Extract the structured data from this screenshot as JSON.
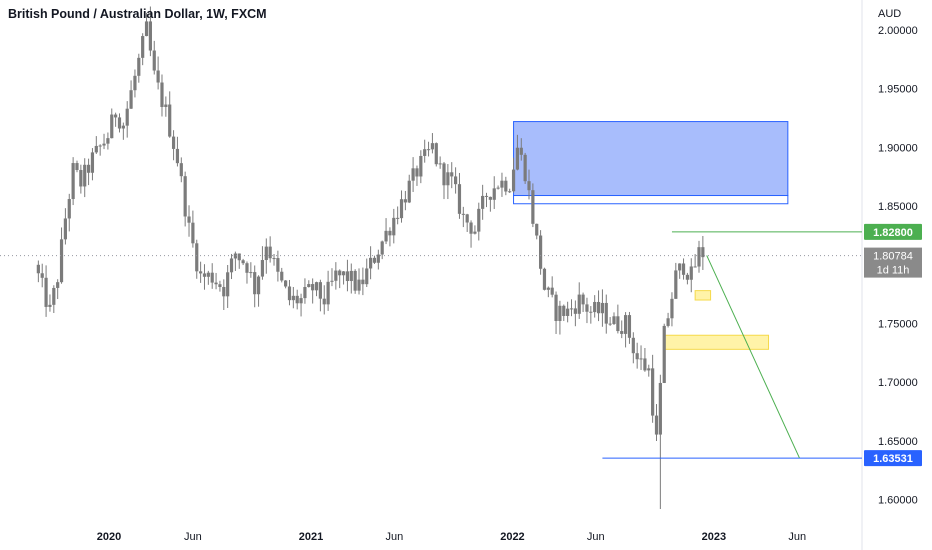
{
  "header": {
    "title": "British Pound / Australian Dollar, 1W, FXCM"
  },
  "price_axis": {
    "currency": "AUD",
    "ticks": [
      "2.00000",
      "1.95000",
      "1.90000",
      "1.85000",
      "1.80000",
      "1.75000",
      "1.70000",
      "1.65000",
      "1.60000"
    ]
  },
  "time_axis": {
    "ticks": [
      {
        "label": "2020",
        "bold": true
      },
      {
        "label": "Jun",
        "bold": false
      },
      {
        "label": "2021",
        "bold": true
      },
      {
        "label": "Jun",
        "bold": false
      },
      {
        "label": "2022",
        "bold": true
      },
      {
        "label": "Jun",
        "bold": false
      },
      {
        "label": "2023",
        "bold": true
      },
      {
        "label": "Jun",
        "bold": false
      }
    ]
  },
  "price_labels": {
    "green_level": "1.82800",
    "last_price": "1.80784",
    "countdown": "1d 11h",
    "blue_level": "1.63531"
  },
  "colors": {
    "candle": "#7b7b7b",
    "green_line": "#4caf50",
    "blue_line": "#2962ff",
    "blue_zone_fill": "#a8bdfc",
    "yellow_zone_fill": "#fff3a8",
    "yellow_zone_border": "#f5d94a",
    "last_price_tag": "#8a8a8a"
  },
  "chart_data": {
    "type": "candlestick",
    "symbol": "British Pound / Australian Dollar",
    "interval": "1W",
    "source": "FXCM",
    "y_axis_label": "AUD",
    "ylim": [
      1.59,
      2.02
    ],
    "x_range": [
      "2019-08",
      "2023-08"
    ],
    "series_path": [
      [
        "2019-08-26",
        1.8
      ],
      [
        "2019-09-09",
        1.78
      ],
      [
        "2019-09-23",
        1.76
      ],
      [
        "2019-10-07",
        1.79
      ],
      [
        "2019-10-21",
        1.84
      ],
      [
        "2019-11-04",
        1.88
      ],
      [
        "2019-11-18",
        1.87
      ],
      [
        "2019-12-09",
        1.89
      ],
      [
        "2020-01-06",
        1.91
      ],
      [
        "2020-01-20",
        1.93
      ],
      [
        "2020-02-03",
        1.92
      ],
      [
        "2020-02-24",
        1.96
      ],
      [
        "2020-03-16",
        2.0
      ],
      [
        "2020-03-30",
        1.96
      ],
      [
        "2020-04-20",
        1.93
      ],
      [
        "2020-05-11",
        1.89
      ],
      [
        "2020-06-01",
        1.83
      ],
      [
        "2020-06-22",
        1.79
      ],
      [
        "2020-07-13",
        1.79
      ],
      [
        "2020-08-03",
        1.78
      ],
      [
        "2020-08-24",
        1.81
      ],
      [
        "2020-09-14",
        1.8
      ],
      [
        "2020-09-28",
        1.78
      ],
      [
        "2020-10-19",
        1.82
      ],
      [
        "2020-11-09",
        1.79
      ],
      [
        "2020-11-30",
        1.77
      ],
      [
        "2020-12-21",
        1.77
      ],
      [
        "2021-01-11",
        1.78
      ],
      [
        "2021-02-01",
        1.77
      ],
      [
        "2021-02-22",
        1.79
      ],
      [
        "2021-03-15",
        1.79
      ],
      [
        "2021-04-05",
        1.78
      ],
      [
        "2021-04-26",
        1.8
      ],
      [
        "2021-05-17",
        1.82
      ],
      [
        "2021-06-07",
        1.84
      ],
      [
        "2021-06-28",
        1.86
      ],
      [
        "2021-07-19",
        1.88
      ],
      [
        "2021-08-02",
        1.89
      ],
      [
        "2021-08-16",
        1.9
      ],
      [
        "2021-08-30",
        1.88
      ],
      [
        "2021-09-20",
        1.87
      ],
      [
        "2021-10-11",
        1.84
      ],
      [
        "2021-11-01",
        1.83
      ],
      [
        "2021-11-22",
        1.86
      ],
      [
        "2021-12-13",
        1.87
      ],
      [
        "2022-01-03",
        1.87
      ],
      [
        "2022-01-17",
        1.9
      ],
      [
        "2022-01-31",
        1.88
      ],
      [
        "2022-02-14",
        1.84
      ],
      [
        "2022-03-07",
        1.78
      ],
      [
        "2022-03-28",
        1.76
      ],
      [
        "2022-04-18",
        1.76
      ],
      [
        "2022-05-09",
        1.77
      ],
      [
        "2022-05-30",
        1.76
      ],
      [
        "2022-06-20",
        1.76
      ],
      [
        "2022-07-11",
        1.75
      ],
      [
        "2022-08-01",
        1.75
      ],
      [
        "2022-08-22",
        1.72
      ],
      [
        "2022-09-12",
        1.71
      ],
      [
        "2022-09-26",
        1.65
      ],
      [
        "2022-10-10",
        1.74
      ],
      [
        "2022-10-31",
        1.79
      ],
      [
        "2022-11-14",
        1.8
      ],
      [
        "2022-11-28",
        1.79
      ],
      [
        "2022-12-12",
        1.81
      ]
    ],
    "annotations": [
      {
        "type": "rectangle",
        "color": "blue",
        "time_from": "2022-01-03",
        "time_to": "2023-05-15",
        "price_from": 1.859,
        "price_to": 1.922
      },
      {
        "type": "rectangle",
        "color": "blue",
        "style": "outline",
        "time_from": "2022-01-03",
        "time_to": "2023-05-15",
        "price_from": 1.852,
        "price_to": 1.859
      },
      {
        "type": "rectangle",
        "color": "yellow",
        "time_from": "2022-10-03",
        "time_to": "2023-04-10",
        "price_from": 1.728,
        "price_to": 1.74
      },
      {
        "type": "rectangle",
        "color": "yellow",
        "time_from": "2022-11-28",
        "time_to": "2022-12-26",
        "price_from": 1.77,
        "price_to": 1.778
      },
      {
        "type": "horizontal_ray",
        "color": "green",
        "time_from": "2022-10-17",
        "price": 1.828
      },
      {
        "type": "horizontal_ray",
        "color": "blue",
        "time_from": "2022-06-13",
        "price": 1.63531
      },
      {
        "type": "trend_line",
        "color": "green",
        "from": [
          "2022-12-19",
          1.808
        ],
        "to": [
          "2023-06-05",
          1.6355
        ]
      },
      {
        "type": "last_price_line",
        "price": 1.80784,
        "style": "dotted"
      }
    ]
  }
}
